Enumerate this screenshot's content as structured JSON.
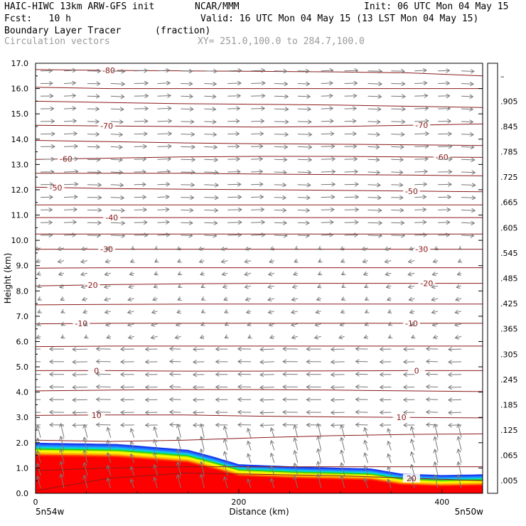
{
  "header": {
    "model_line": "HAIC-HIWC 13km ARW-GFS init",
    "org": "NCAR/MMM",
    "init": "Init: 06 UTC Mon 04 May 15",
    "fcst": "Fcst:   10 h",
    "valid": "Valid: 16 UTC Mon 04 May 15 (13 LST Mon 04 May 15)",
    "field_name": "Boundary Layer Tracer",
    "field_units": "(fraction)",
    "vector_label": "Circulation vectors",
    "xy_label": "XY= 251.0,100.0 to 284.7,100.0"
  },
  "chart_data": {
    "type": "heatmap",
    "ylabel": "Height (km)",
    "xlabel": "Distance (km)",
    "xlim": [
      0,
      440
    ],
    "ylim": [
      0,
      17
    ],
    "y_ticks": [
      "0.0",
      "1.0",
      "2.0",
      "3.0",
      "4.0",
      "5.0",
      "6.0",
      "7.0",
      "8.0",
      "9.0",
      "10.0",
      "11.0",
      "12.0",
      "13.0",
      "14.0",
      "15.0",
      "16.0",
      "17.0"
    ],
    "x_ticks": [
      {
        "value": 0,
        "label": "0"
      },
      {
        "value": 200,
        "label": "200"
      },
      {
        "value": 400,
        "label": "400"
      }
    ],
    "x_endpoints": {
      "left": "5n54w",
      "right": "5n50w"
    },
    "colorbar": {
      "labels": [
        ".005",
        ".065",
        ".125",
        ".185",
        ".245",
        ".305",
        ".365",
        ".425",
        ".485",
        ".545",
        ".605",
        ".665",
        ".725",
        ".785",
        ".845",
        ".905",
        "–"
      ],
      "colors": [
        "#ffffff",
        "#1a3cf0",
        "#1f78ff",
        "#19b4f5",
        "#00dcc8",
        "#00cc66",
        "#00aa00",
        "#33cc00",
        "#88e000",
        "#d4f000",
        "#ffff00",
        "#ffcc00",
        "#ff9900",
        "#ff6600",
        "#ff3300",
        "#ff1a00",
        "#ff0000"
      ]
    },
    "tracer_top_km": [
      [
        0,
        2.0
      ],
      [
        80,
        1.95
      ],
      [
        150,
        1.72
      ],
      [
        175,
        1.45
      ],
      [
        200,
        1.15
      ],
      [
        260,
        1.05
      ],
      [
        330,
        0.98
      ],
      [
        360,
        0.78
      ],
      [
        400,
        0.72
      ],
      [
        440,
        0.75
      ]
    ],
    "temperature_contours": [
      {
        "label": "-80",
        "label_x": 72,
        "y": [
          16.75,
          16.72,
          16.7,
          16.68,
          16.66,
          16.62,
          16.5
        ]
      },
      {
        "label": "-70",
        "label_x": 70,
        "label2_x": 380,
        "y": [
          14.55,
          14.52,
          14.5,
          14.48,
          14.5,
          14.55,
          14.6
        ]
      },
      {
        "label": "-60",
        "label_x": 30,
        "label2_x": 400,
        "y": [
          13.2,
          13.25,
          13.3,
          13.32,
          13.32,
          13.3,
          13.28
        ]
      },
      {
        "label": "-50",
        "label_x": 20,
        "label2_x": 370,
        "y": [
          12.1,
          12.05,
          12.02,
          12.0,
          11.98,
          11.95,
          11.92
        ]
      },
      {
        "label": "-40",
        "label_x": 75,
        "y": [
          10.9,
          10.9,
          10.9,
          10.9,
          10.9,
          10.9,
          10.9
        ]
      },
      {
        "label": "-30",
        "label_x": 70,
        "label2_x": 380,
        "y": [
          9.65,
          9.65,
          9.65,
          9.65,
          9.65,
          9.65,
          9.65
        ]
      },
      {
        "label": "-20",
        "label_x": 55,
        "label2_x": 385,
        "y": [
          8.2,
          8.25,
          8.28,
          8.3,
          8.3,
          8.3,
          8.3
        ]
      },
      {
        "label": "-10",
        "label_x": 45,
        "label2_x": 370,
        "y": [
          6.7,
          6.72,
          6.72,
          6.72,
          6.72,
          6.72,
          6.72
        ]
      },
      {
        "label": "0",
        "label_x": 60,
        "label2_x": 375,
        "y": [
          4.85,
          4.85,
          4.83,
          4.83,
          4.84,
          4.85,
          4.85
        ]
      },
      {
        "label": "10",
        "label_x": 60,
        "label2_x": 360,
        "y": [
          3.08,
          3.1,
          3.1,
          3.05,
          3.02,
          3.0,
          2.98
        ]
      },
      {
        "label": "20",
        "label_x": 370,
        "y": [
          0.1,
          0.6,
          0.8,
          0.75,
          0.7,
          0.6,
          0.5
        ]
      }
    ],
    "other_contours": [
      {
        "y": [
          16.05,
          16.0,
          16.0,
          16.0,
          16.0,
          16.0,
          16.0
        ]
      },
      {
        "y": [
          15.5,
          15.45,
          15.4,
          15.38,
          15.35,
          15.3,
          15.25
        ]
      },
      {
        "y": [
          13.95,
          13.9,
          13.85,
          13.82,
          13.8,
          13.78,
          13.75
        ]
      },
      {
        "y": [
          12.65,
          12.65,
          12.65,
          12.62,
          12.6,
          12.58,
          12.55
        ]
      },
      {
        "y": [
          11.4,
          11.4,
          11.4,
          11.4,
          11.4,
          11.4,
          11.4
        ]
      },
      {
        "y": [
          10.25,
          10.25,
          10.25,
          10.25,
          10.25,
          10.25,
          10.25
        ]
      },
      {
        "y": [
          8.9,
          8.92,
          8.92,
          8.92,
          8.92,
          8.92,
          8.92
        ]
      },
      {
        "y": [
          7.45,
          7.47,
          7.48,
          7.48,
          7.48,
          7.48,
          7.48
        ]
      },
      {
        "y": [
          5.8,
          5.82,
          5.82,
          5.82,
          5.82,
          5.82,
          5.82
        ]
      },
      {
        "y": [
          4.05,
          4.08,
          4.1,
          4.1,
          4.08,
          4.05,
          4.02
        ]
      },
      {
        "y": [
          2.1,
          2.05,
          2.1,
          2.2,
          2.28,
          2.33,
          2.35
        ]
      },
      {
        "y": [
          0.9,
          1.0,
          1.05,
          1.05,
          1.05,
          1.05,
          1.05
        ]
      }
    ],
    "vectors": {
      "x_spacing_km": 23,
      "y_spacing_km": 0.5
    }
  }
}
